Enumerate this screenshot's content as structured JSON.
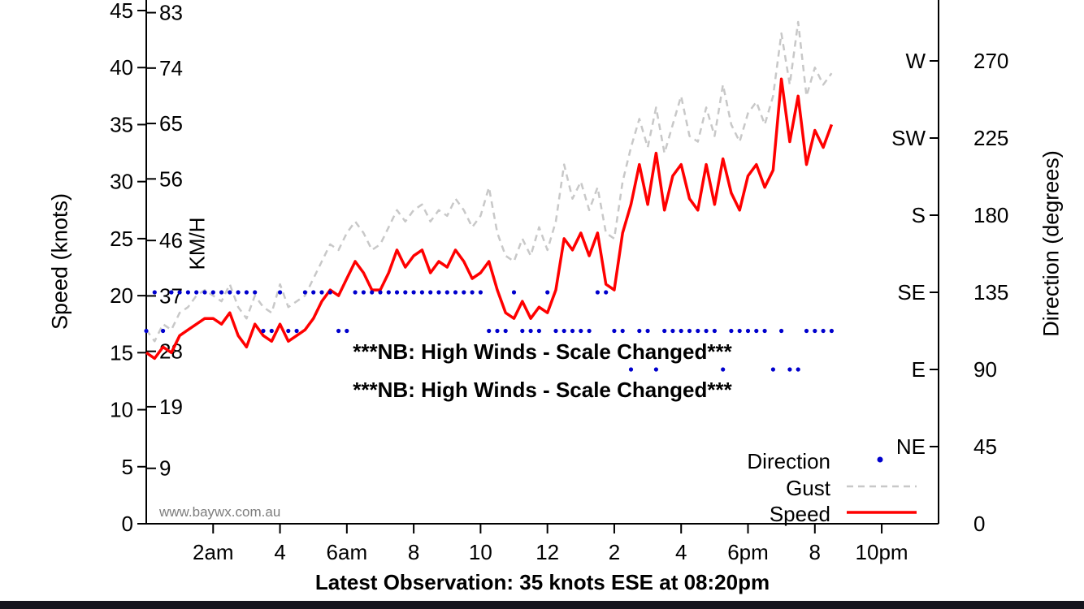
{
  "chart_data": {
    "type": "line",
    "title": "Latest Observation: 35 knots ESE at 08:20pm",
    "ylabel_left": "Speed (knots)",
    "kmh_label": "KM/H",
    "ylabel_right": "Direction (degrees)",
    "watermark": "www.baywx.com.au",
    "annotations": [
      "***NB: High Winds - Scale Changed***",
      "***NB: High Winds - Scale Changed***"
    ],
    "x_axis": {
      "range_hours": [
        0,
        23.7
      ],
      "ticks": [
        {
          "t": 2,
          "label": "2am"
        },
        {
          "t": 4,
          "label": "4"
        },
        {
          "t": 6,
          "label": "6am"
        },
        {
          "t": 8,
          "label": "8"
        },
        {
          "t": 10,
          "label": "10"
        },
        {
          "t": 12,
          "label": "12"
        },
        {
          "t": 14,
          "label": "2"
        },
        {
          "t": 16,
          "label": "4"
        },
        {
          "t": 18,
          "label": "6pm"
        },
        {
          "t": 20,
          "label": "8"
        },
        {
          "t": 22,
          "label": "10pm"
        }
      ]
    },
    "y_axis_left": {
      "range_knots": [
        0,
        45
      ],
      "ticks_knots": [
        0,
        5,
        10,
        15,
        20,
        25,
        30,
        35,
        40,
        45
      ],
      "ticks_kmh": [
        9,
        19,
        28,
        37,
        46,
        56,
        65,
        74,
        83
      ]
    },
    "y_axis_right": {
      "range_deg": [
        0,
        303.75
      ],
      "ticks_deg": [
        0,
        45,
        90,
        135,
        180,
        225,
        270
      ],
      "compass": [
        {
          "label": "NE",
          "deg": 45
        },
        {
          "label": "E",
          "deg": 90
        },
        {
          "label": "SE",
          "deg": 135
        },
        {
          "label": "S",
          "deg": 180
        },
        {
          "label": "SW",
          "deg": 225
        },
        {
          "label": "W",
          "deg": 270
        }
      ]
    },
    "legend": [
      {
        "label": "Direction",
        "sample": "dot",
        "color": "#0000cd"
      },
      {
        "label": "Gust",
        "sample": "dashed-line",
        "color": "#c8c8c8"
      },
      {
        "label": "Speed",
        "sample": "solid-line",
        "color": "#ff0000"
      }
    ],
    "series": {
      "x_hours": [
        0,
        0.25,
        0.5,
        0.75,
        1,
        1.25,
        1.5,
        1.75,
        2,
        2.25,
        2.5,
        2.75,
        3,
        3.25,
        3.5,
        3.75,
        4,
        4.25,
        4.5,
        4.75,
        5,
        5.25,
        5.5,
        5.75,
        6,
        6.25,
        6.5,
        6.75,
        7,
        7.25,
        7.5,
        7.75,
        8,
        8.25,
        8.5,
        8.75,
        9,
        9.25,
        9.5,
        9.75,
        10,
        10.25,
        10.5,
        10.75,
        11,
        11.25,
        11.5,
        11.75,
        12,
        12.25,
        12.5,
        12.75,
        13,
        13.25,
        13.5,
        13.75,
        14,
        14.25,
        14.5,
        14.75,
        15,
        15.25,
        15.5,
        15.75,
        16,
        16.25,
        16.5,
        16.75,
        17,
        17.25,
        17.5,
        17.75,
        18,
        18.25,
        18.5,
        18.75,
        19,
        19.25,
        19.5,
        19.75,
        20,
        20.25,
        20.5
      ],
      "speed_knots": [
        15,
        14.5,
        15.5,
        15,
        16.5,
        17,
        17.5,
        18,
        18,
        17.5,
        18.5,
        16.5,
        15.5,
        17.5,
        16.5,
        16,
        17.5,
        16,
        16.5,
        17,
        18,
        19.5,
        20.5,
        20,
        21.5,
        23,
        22,
        20.5,
        20.5,
        22,
        24,
        22.5,
        23.5,
        24,
        22,
        23,
        22.5,
        24,
        23,
        21.5,
        22,
        23,
        20.5,
        18.5,
        18,
        19.5,
        18,
        19,
        18.5,
        20.5,
        25,
        24,
        25.5,
        23.5,
        25.5,
        21,
        20.5,
        25.5,
        28,
        31.5,
        28,
        32.5,
        27.5,
        30.5,
        31.5,
        28.5,
        27.5,
        31.5,
        28,
        32,
        29,
        27.5,
        30.5,
        31.5,
        29.5,
        31,
        39,
        33.5,
        37.5,
        31.5,
        34.5,
        33,
        35
      ],
      "gust_knots": [
        17,
        16,
        17.5,
        17,
        18.5,
        19,
        20,
        20.5,
        20,
        19.5,
        21,
        19,
        18,
        20,
        19,
        18.5,
        21,
        19,
        19.5,
        20,
        21.5,
        23,
        24.5,
        24,
        25.5,
        26.5,
        25.5,
        24,
        24.5,
        26,
        27.5,
        26.5,
        27.5,
        28,
        26.5,
        27.5,
        27,
        28.5,
        27.5,
        26,
        27,
        29.5,
        25.5,
        23.5,
        23,
        25,
        23.5,
        26,
        24,
        26.5,
        31.5,
        28.5,
        30,
        27.5,
        29.5,
        25.5,
        25,
        30,
        33,
        35.5,
        33,
        36.5,
        32.5,
        35,
        37.5,
        34,
        33.5,
        36.5,
        34,
        38.5,
        35,
        33.5,
        36,
        37,
        35,
        37.5,
        43,
        38.5,
        44,
        37.5,
        40,
        38.5,
        39.5
      ],
      "direction_deg": [
        112.5,
        135,
        112.5,
        135,
        135,
        135,
        135,
        135,
        135,
        135,
        135,
        135,
        135,
        135,
        112.5,
        112.5,
        135,
        112.5,
        112.5,
        135,
        135,
        135,
        135,
        112.5,
        112.5,
        135,
        135,
        135,
        135,
        135,
        135,
        135,
        135,
        135,
        135,
        135,
        135,
        135,
        135,
        135,
        135,
        112.5,
        112.5,
        112.5,
        135,
        112.5,
        112.5,
        112.5,
        135,
        112.5,
        112.5,
        112.5,
        112.5,
        112.5,
        135,
        135,
        112.5,
        112.5,
        90,
        112.5,
        112.5,
        90,
        112.5,
        112.5,
        112.5,
        112.5,
        112.5,
        112.5,
        112.5,
        90,
        112.5,
        112.5,
        112.5,
        112.5,
        112.5,
        90,
        112.5,
        90,
        90,
        112.5,
        112.5,
        112.5,
        112.5
      ]
    }
  }
}
